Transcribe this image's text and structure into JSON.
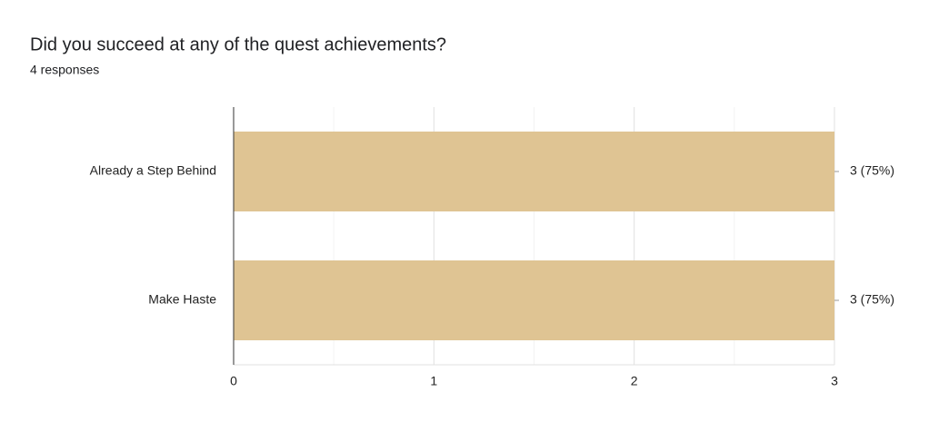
{
  "chart_data": {
    "type": "hbar",
    "title": "Did you succeed at any of the quest achievements?",
    "subtitle": "4 responses",
    "categories": [
      "Already a Step Behind",
      "Make Haste"
    ],
    "values": [
      3,
      3
    ],
    "value_labels": [
      "3 (75%)",
      "3 (75%)"
    ],
    "color": "#dfc493",
    "xlim": [
      0,
      3
    ],
    "xticks": [
      0,
      1,
      2,
      3
    ],
    "xminor": [
      0.5,
      1.5,
      2.5
    ],
    "grid": true
  }
}
